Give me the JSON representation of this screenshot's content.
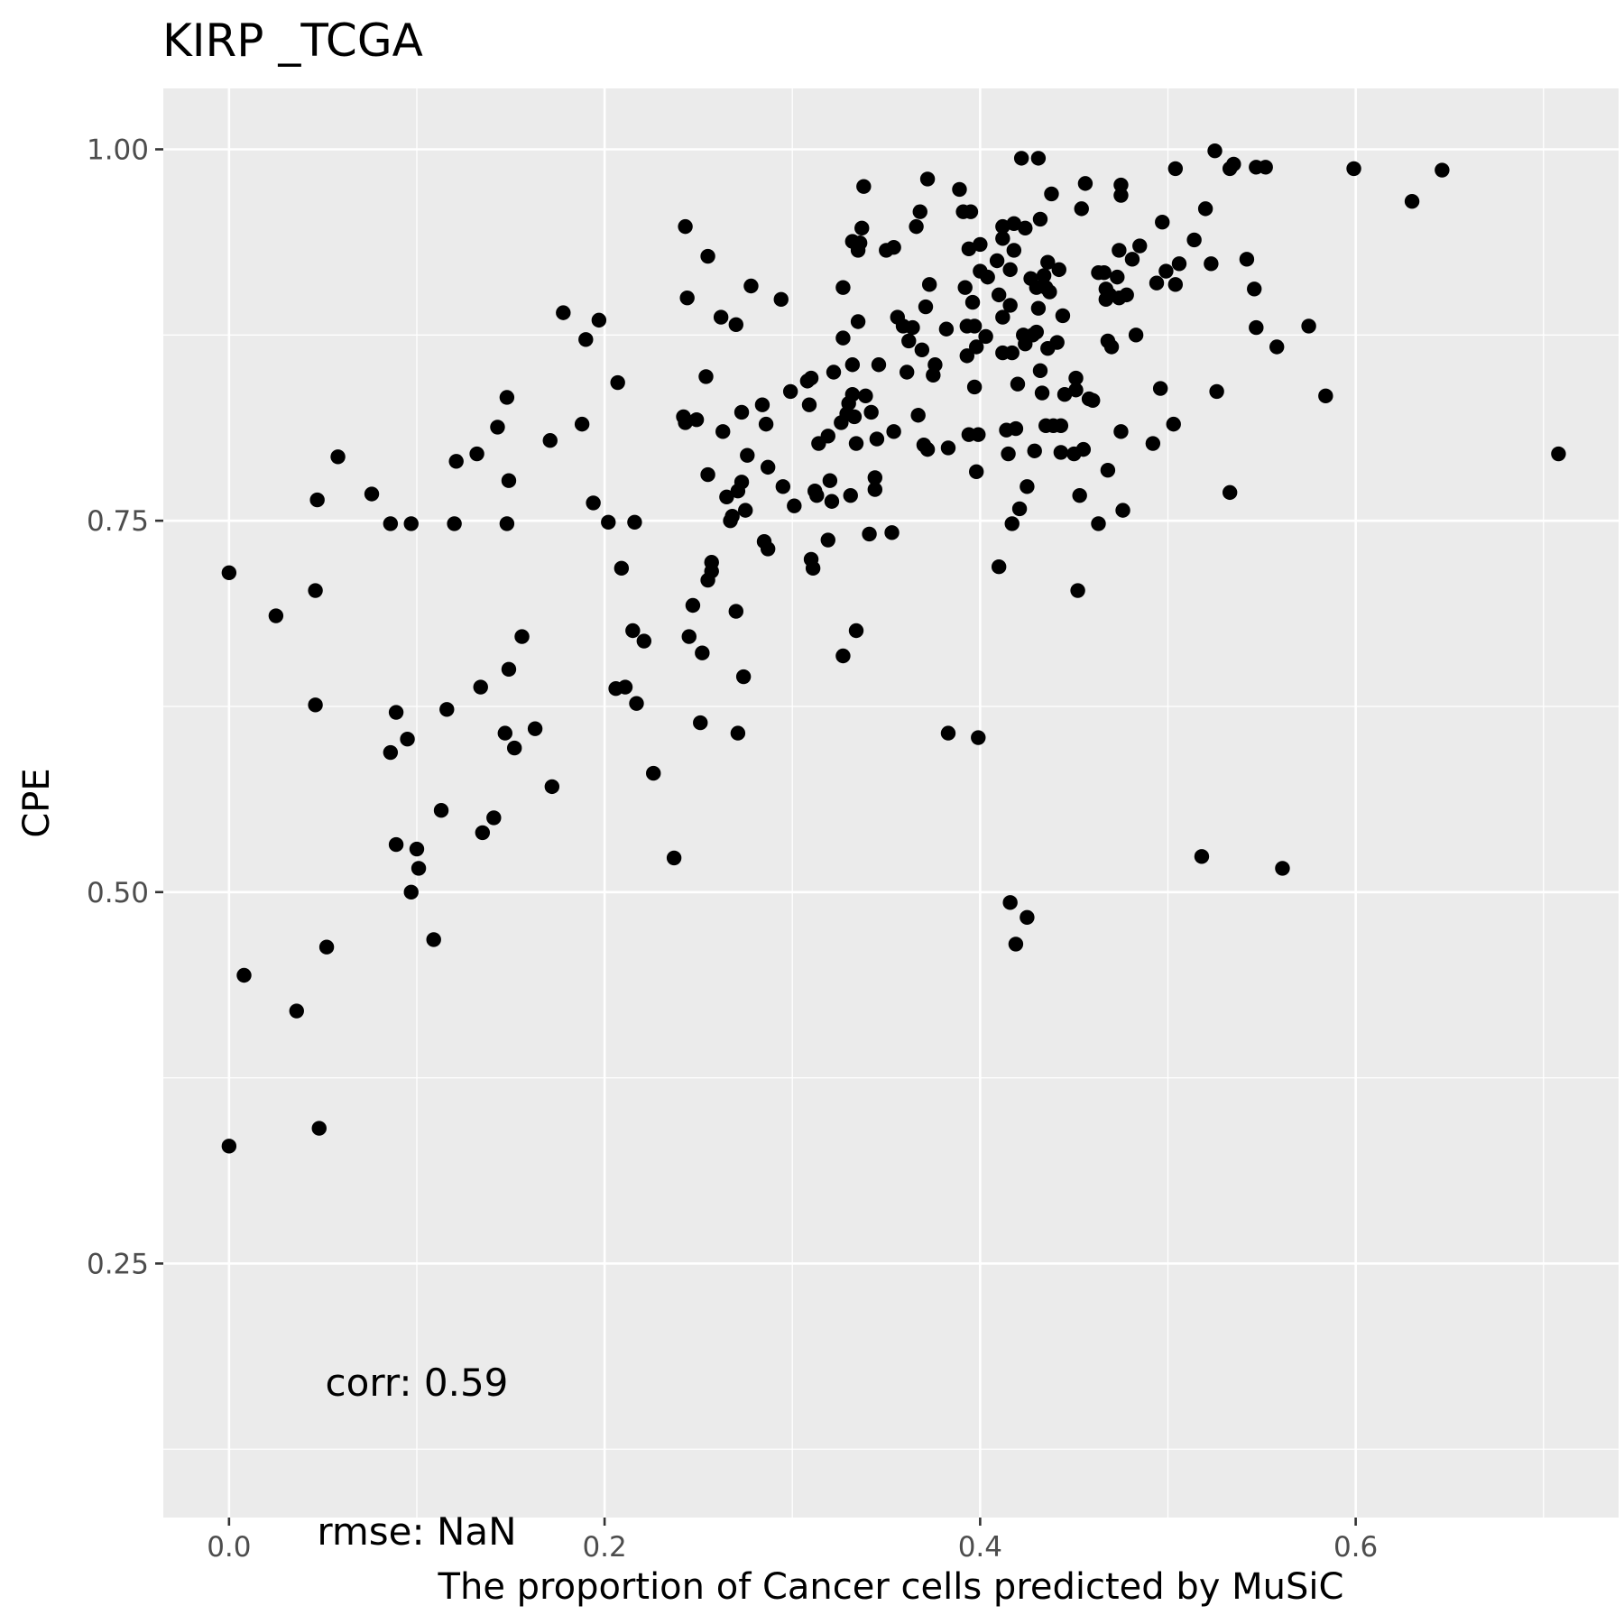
{
  "chart_data": {
    "type": "scatter",
    "title": "KIRP _TCGA",
    "xlabel": "The proportion of Cancer cells predicted by MuSiC",
    "ylabel": "CPE",
    "xlim": [
      -0.035,
      0.74
    ],
    "ylim": [
      0.079,
      1.041
    ],
    "x_ticks": [
      0.0,
      0.2,
      0.4,
      0.6
    ],
    "x_tick_labels": [
      "0.0",
      "0.2",
      "0.4",
      "0.6"
    ],
    "y_ticks": [
      0.25,
      0.5,
      0.75,
      1.0
    ],
    "y_tick_labels": [
      "0.25",
      "0.50",
      "0.75",
      "1.00"
    ],
    "grid": true,
    "background": "#ebebeb",
    "point_color": "#000000",
    "annotations": [
      {
        "text": "corr: 0.59",
        "x": 0.1,
        "y": 0.17
      },
      {
        "text": "rmse: NaN",
        "x": 0.1,
        "y": 0.07
      }
    ],
    "points": [
      [
        0.0,
        0.715
      ],
      [
        0.0,
        0.329
      ],
      [
        0.008,
        0.444
      ],
      [
        0.025,
        0.686
      ],
      [
        0.036,
        0.42
      ],
      [
        0.046,
        0.703
      ],
      [
        0.046,
        0.626
      ],
      [
        0.047,
        0.764
      ],
      [
        0.048,
        0.341
      ],
      [
        0.052,
        0.463
      ],
      [
        0.058,
        0.793
      ],
      [
        0.076,
        0.768
      ],
      [
        0.086,
        0.748
      ],
      [
        0.086,
        0.594
      ],
      [
        0.089,
        0.621
      ],
      [
        0.089,
        0.532
      ],
      [
        0.095,
        0.603
      ],
      [
        0.097,
        0.748
      ],
      [
        0.097,
        0.5
      ],
      [
        0.1,
        0.529
      ],
      [
        0.101,
        0.516
      ],
      [
        0.109,
        0.468
      ],
      [
        0.113,
        0.555
      ],
      [
        0.116,
        0.623
      ],
      [
        0.12,
        0.748
      ],
      [
        0.121,
        0.79
      ],
      [
        0.132,
        0.795
      ],
      [
        0.134,
        0.638
      ],
      [
        0.135,
        0.54
      ],
      [
        0.141,
        0.55
      ],
      [
        0.143,
        0.813
      ],
      [
        0.147,
        0.607
      ],
      [
        0.148,
        0.748
      ],
      [
        0.148,
        0.833
      ],
      [
        0.149,
        0.777
      ],
      [
        0.149,
        0.65
      ],
      [
        0.152,
        0.597
      ],
      [
        0.156,
        0.672
      ],
      [
        0.163,
        0.61
      ],
      [
        0.171,
        0.804
      ],
      [
        0.172,
        0.571
      ],
      [
        0.178,
        0.89
      ],
      [
        0.188,
        0.815
      ],
      [
        0.19,
        0.872
      ],
      [
        0.194,
        0.762
      ],
      [
        0.197,
        0.885
      ],
      [
        0.202,
        0.749
      ],
      [
        0.206,
        0.637
      ],
      [
        0.207,
        0.843
      ],
      [
        0.209,
        0.718
      ],
      [
        0.211,
        0.638
      ],
      [
        0.215,
        0.676
      ],
      [
        0.216,
        0.749
      ],
      [
        0.217,
        0.627
      ],
      [
        0.221,
        0.669
      ],
      [
        0.226,
        0.58
      ],
      [
        0.237,
        0.523
      ],
      [
        0.242,
        0.82
      ],
      [
        0.243,
        0.816
      ],
      [
        0.243,
        0.948
      ],
      [
        0.244,
        0.9
      ],
      [
        0.245,
        0.672
      ],
      [
        0.247,
        0.693
      ],
      [
        0.249,
        0.818
      ],
      [
        0.251,
        0.614
      ],
      [
        0.252,
        0.661
      ],
      [
        0.254,
        0.847
      ],
      [
        0.255,
        0.781
      ],
      [
        0.255,
        0.928
      ],
      [
        0.255,
        0.71
      ],
      [
        0.257,
        0.722
      ],
      [
        0.257,
        0.716
      ],
      [
        0.262,
        0.887
      ],
      [
        0.263,
        0.81
      ],
      [
        0.265,
        0.766
      ],
      [
        0.267,
        0.75
      ],
      [
        0.268,
        0.753
      ],
      [
        0.27,
        0.689
      ],
      [
        0.27,
        0.882
      ],
      [
        0.271,
        0.607
      ],
      [
        0.271,
        0.77
      ],
      [
        0.273,
        0.823
      ],
      [
        0.273,
        0.776
      ],
      [
        0.274,
        0.645
      ],
      [
        0.275,
        0.757
      ],
      [
        0.276,
        0.794
      ],
      [
        0.278,
        0.908
      ],
      [
        0.284,
        0.828
      ],
      [
        0.285,
        0.736
      ],
      [
        0.286,
        0.815
      ],
      [
        0.287,
        0.731
      ],
      [
        0.287,
        0.786
      ],
      [
        0.294,
        0.899
      ],
      [
        0.295,
        0.773
      ],
      [
        0.299,
        0.837
      ],
      [
        0.301,
        0.76
      ],
      [
        0.308,
        0.844
      ],
      [
        0.309,
        0.828
      ],
      [
        0.31,
        0.846
      ],
      [
        0.31,
        0.724
      ],
      [
        0.311,
        0.718
      ],
      [
        0.312,
        0.77
      ],
      [
        0.313,
        0.767
      ],
      [
        0.314,
        0.802
      ],
      [
        0.319,
        0.737
      ],
      [
        0.319,
        0.807
      ],
      [
        0.32,
        0.777
      ],
      [
        0.321,
        0.763
      ],
      [
        0.322,
        0.85
      ],
      [
        0.326,
        0.816
      ],
      [
        0.327,
        0.873
      ],
      [
        0.327,
        0.907
      ],
      [
        0.327,
        0.659
      ],
      [
        0.329,
        0.822
      ],
      [
        0.33,
        0.829
      ],
      [
        0.331,
        0.767
      ],
      [
        0.332,
        0.938
      ],
      [
        0.332,
        0.855
      ],
      [
        0.332,
        0.835
      ],
      [
        0.333,
        0.82
      ],
      [
        0.334,
        0.802
      ],
      [
        0.334,
        0.676
      ],
      [
        0.335,
        0.884
      ],
      [
        0.335,
        0.932
      ],
      [
        0.336,
        0.937
      ],
      [
        0.337,
        0.947
      ],
      [
        0.338,
        0.975
      ],
      [
        0.339,
        0.834
      ],
      [
        0.341,
        0.741
      ],
      [
        0.342,
        0.823
      ],
      [
        0.344,
        0.779
      ],
      [
        0.344,
        0.771
      ],
      [
        0.345,
        0.805
      ],
      [
        0.346,
        0.855
      ],
      [
        0.35,
        0.932
      ],
      [
        0.353,
        0.742
      ],
      [
        0.354,
        0.81
      ],
      [
        0.354,
        0.934
      ],
      [
        0.356,
        0.887
      ],
      [
        0.359,
        0.881
      ],
      [
        0.361,
        0.85
      ],
      [
        0.362,
        0.871
      ],
      [
        0.364,
        0.88
      ],
      [
        0.366,
        0.948
      ],
      [
        0.367,
        0.821
      ],
      [
        0.368,
        0.958
      ],
      [
        0.369,
        0.865
      ],
      [
        0.37,
        0.801
      ],
      [
        0.371,
        0.894
      ],
      [
        0.372,
        0.98
      ],
      [
        0.372,
        0.798
      ],
      [
        0.373,
        0.909
      ],
      [
        0.375,
        0.848
      ],
      [
        0.376,
        0.855
      ],
      [
        0.382,
        0.879
      ],
      [
        0.383,
        0.607
      ],
      [
        0.383,
        0.799
      ],
      [
        0.389,
        0.973
      ],
      [
        0.391,
        0.958
      ],
      [
        0.392,
        0.907
      ],
      [
        0.393,
        0.881
      ],
      [
        0.393,
        0.861
      ],
      [
        0.394,
        0.933
      ],
      [
        0.394,
        0.808
      ],
      [
        0.395,
        0.958
      ],
      [
        0.396,
        0.897
      ],
      [
        0.397,
        0.84
      ],
      [
        0.397,
        0.881
      ],
      [
        0.398,
        0.783
      ],
      [
        0.398,
        0.867
      ],
      [
        0.399,
        0.604
      ],
      [
        0.399,
        0.808
      ],
      [
        0.4,
        0.936
      ],
      [
        0.4,
        0.918
      ],
      [
        0.403,
        0.874
      ],
      [
        0.404,
        0.914
      ],
      [
        0.409,
        0.925
      ],
      [
        0.41,
        0.902
      ],
      [
        0.41,
        0.719
      ],
      [
        0.412,
        0.94
      ],
      [
        0.412,
        0.948
      ],
      [
        0.412,
        0.863
      ],
      [
        0.412,
        0.887
      ],
      [
        0.414,
        0.811
      ],
      [
        0.415,
        0.795
      ],
      [
        0.416,
        0.493
      ],
      [
        0.416,
        0.895
      ],
      [
        0.416,
        0.919
      ],
      [
        0.417,
        0.748
      ],
      [
        0.417,
        0.863
      ],
      [
        0.418,
        0.932
      ],
      [
        0.418,
        0.95
      ],
      [
        0.419,
        0.465
      ],
      [
        0.419,
        0.812
      ],
      [
        0.42,
        0.842
      ],
      [
        0.421,
        0.758
      ],
      [
        0.422,
        0.994
      ],
      [
        0.423,
        0.875
      ],
      [
        0.424,
        0.947
      ],
      [
        0.424,
        0.869
      ],
      [
        0.425,
        0.773
      ],
      [
        0.425,
        0.483
      ],
      [
        0.427,
        0.913
      ],
      [
        0.428,
        0.875
      ],
      [
        0.429,
        0.797
      ],
      [
        0.43,
        0.907
      ],
      [
        0.43,
        0.877
      ],
      [
        0.431,
        0.893
      ],
      [
        0.431,
        0.994
      ],
      [
        0.432,
        0.851
      ],
      [
        0.432,
        0.953
      ],
      [
        0.433,
        0.836
      ],
      [
        0.434,
        0.915
      ],
      [
        0.435,
        0.907
      ],
      [
        0.435,
        0.814
      ],
      [
        0.436,
        0.924
      ],
      [
        0.436,
        0.866
      ],
      [
        0.437,
        0.904
      ],
      [
        0.438,
        0.97
      ],
      [
        0.439,
        0.814
      ],
      [
        0.441,
        0.87
      ],
      [
        0.442,
        0.919
      ],
      [
        0.443,
        0.814
      ],
      [
        0.443,
        0.796
      ],
      [
        0.444,
        0.888
      ],
      [
        0.445,
        0.835
      ],
      [
        0.45,
        0.795
      ],
      [
        0.451,
        0.846
      ],
      [
        0.451,
        0.838
      ],
      [
        0.452,
        0.703
      ],
      [
        0.453,
        0.767
      ],
      [
        0.454,
        0.96
      ],
      [
        0.455,
        0.798
      ],
      [
        0.456,
        0.977
      ],
      [
        0.458,
        0.832
      ],
      [
        0.46,
        0.831
      ],
      [
        0.463,
        0.748
      ],
      [
        0.463,
        0.917
      ],
      [
        0.466,
        0.917
      ],
      [
        0.467,
        0.899
      ],
      [
        0.467,
        0.906
      ],
      [
        0.468,
        0.871
      ],
      [
        0.468,
        0.784
      ],
      [
        0.469,
        0.902
      ],
      [
        0.47,
        0.867
      ],
      [
        0.473,
        0.914
      ],
      [
        0.474,
        0.9
      ],
      [
        0.474,
        0.932
      ],
      [
        0.475,
        0.81
      ],
      [
        0.475,
        0.969
      ],
      [
        0.475,
        0.976
      ],
      [
        0.476,
        0.757
      ],
      [
        0.478,
        0.902
      ],
      [
        0.481,
        0.926
      ],
      [
        0.483,
        0.875
      ],
      [
        0.485,
        0.935
      ],
      [
        0.492,
        0.802
      ],
      [
        0.494,
        0.91
      ],
      [
        0.496,
        0.839
      ],
      [
        0.497,
        0.951
      ],
      [
        0.499,
        0.918
      ],
      [
        0.503,
        0.815
      ],
      [
        0.504,
        0.987
      ],
      [
        0.504,
        0.909
      ],
      [
        0.506,
        0.923
      ],
      [
        0.514,
        0.939
      ],
      [
        0.518,
        0.524
      ],
      [
        0.52,
        0.96
      ],
      [
        0.523,
        0.923
      ],
      [
        0.525,
        0.999
      ],
      [
        0.526,
        0.837
      ],
      [
        0.533,
        0.769
      ],
      [
        0.533,
        0.987
      ],
      [
        0.535,
        0.99
      ],
      [
        0.542,
        0.926
      ],
      [
        0.546,
        0.906
      ],
      [
        0.547,
        0.988
      ],
      [
        0.547,
        0.88
      ],
      [
        0.552,
        0.988
      ],
      [
        0.558,
        0.867
      ],
      [
        0.561,
        0.516
      ],
      [
        0.575,
        0.881
      ],
      [
        0.584,
        0.834
      ],
      [
        0.599,
        0.987
      ],
      [
        0.63,
        0.965
      ],
      [
        0.646,
        0.986
      ],
      [
        0.708,
        0.795
      ]
    ]
  }
}
